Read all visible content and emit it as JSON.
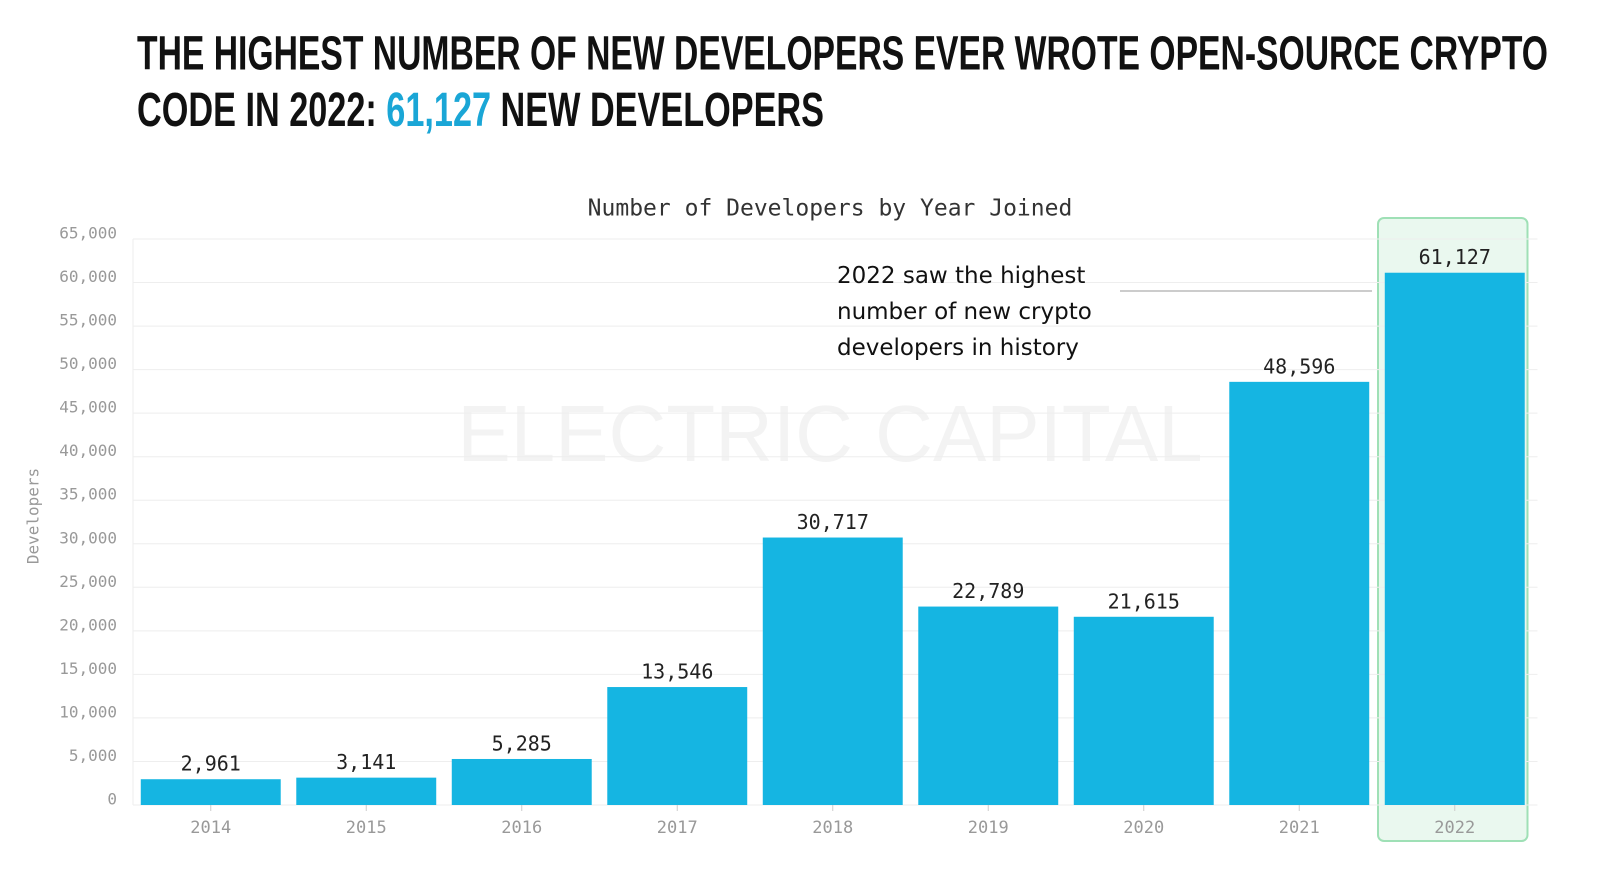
{
  "chart_data": {
    "type": "bar",
    "title": [
      "THE HIGHEST NUMBER OF NEW DEVELOPERS EVER WROTE OPEN-SOURCE CRYPTO",
      "CODE IN 2022:",
      "61,127",
      "NEW DEVELOPERS"
    ],
    "title_highlight_color": "#1aa6d6",
    "subtitle": "Number of Developers by Year Joined",
    "y_label": "Developers",
    "watermark": "ELECTRIC CAPITAL",
    "annotation": [
      "2022 saw the highest",
      "number of new crypto",
      "developers in history"
    ],
    "highlight_category": "2022",
    "categories": [
      "2014",
      "2015",
      "2016",
      "2017",
      "2018",
      "2019",
      "2020",
      "2021",
      "2022"
    ],
    "values": [
      2961,
      3141,
      5285,
      13546,
      30717,
      22789,
      21615,
      48596,
      61127
    ],
    "value_labels": [
      "2,961",
      "3,141",
      "5,285",
      "13,546",
      "30,717",
      "22,789",
      "21,615",
      "48,596",
      "61,127"
    ],
    "color": "#15b5e2",
    "ylim": [
      0,
      65000
    ],
    "yticks": [
      0,
      {
        "value": 5000,
        "label": "5,000"
      },
      {
        "value": 10000,
        "label": "10,000"
      },
      {
        "value": 15000,
        "label": "15,000"
      },
      {
        "value": 20000,
        "label": "20,000"
      },
      {
        "value": 25000,
        "label": "25,000"
      },
      {
        "value": 30000,
        "label": "30,000"
      },
      {
        "value": 35000,
        "label": "35,000"
      },
      {
        "value": 40000,
        "label": "40,000"
      },
      {
        "value": 45000,
        "label": "45,000"
      },
      {
        "value": 50000,
        "label": "50,000"
      },
      {
        "value": 55000,
        "label": "55,000"
      },
      {
        "value": 60000,
        "label": "60,000"
      },
      {
        "value": 65000,
        "label": "65,000"
      }
    ],
    "grid": true
  }
}
